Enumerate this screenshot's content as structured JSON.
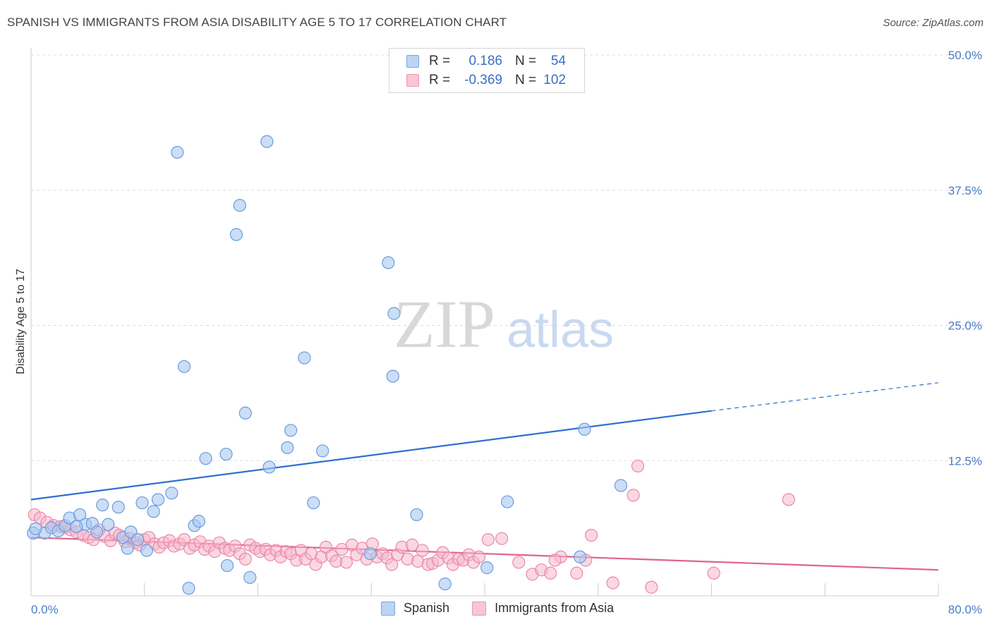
{
  "title": "SPANISH VS IMMIGRANTS FROM ASIA DISABILITY AGE 5 TO 17 CORRELATION CHART",
  "source": "Source: ZipAtlas.com",
  "watermark": {
    "zip": "ZIP",
    "atlas": "atlas"
  },
  "legend": [
    {
      "name": "Spanish",
      "r_label": "R =",
      "r_value": "0.186",
      "n_label": "N =",
      "n_value": "54"
    },
    {
      "name": "Immigrants from Asia",
      "r_label": "R =",
      "r_value": "-0.369",
      "n_label": "N =",
      "n_value": "102"
    }
  ],
  "colors": {
    "spanish_fill": "#a9c8ef",
    "spanish_stroke": "#6a9be0",
    "spanish_line": "#2f6fd0",
    "asia_fill": "#f6b8cb",
    "asia_stroke": "#ea88a8",
    "asia_line": "#e0628f",
    "grid": "#dddddd",
    "axis_text": "#4a7cc9"
  },
  "chart_data": {
    "type": "scatter",
    "title": "SPANISH VS IMMIGRANTS FROM ASIA DISABILITY AGE 5 TO 17 CORRELATION CHART",
    "xlabel": "",
    "ylabel": "Disability Age 5 to 17",
    "xlim": [
      0,
      80
    ],
    "ylim": [
      0,
      50
    ],
    "x_tick_labels": [
      "0.0%",
      "80.0%"
    ],
    "y_tick_labels": [
      "12.5%",
      "25.0%",
      "37.5%",
      "50.0%"
    ],
    "y_ticks": [
      12.5,
      25.0,
      37.5,
      50.0
    ],
    "series": [
      {
        "name": "Spanish",
        "r": 0.186,
        "n": 54,
        "trend": {
          "x0": 0,
          "y0": 8.9,
          "x1": 60,
          "y1": 17.1,
          "dashed_to_x": 80,
          "dashed_to_y": 19.7
        },
        "points": [
          [
            0.2,
            5.8
          ],
          [
            1.2,
            5.8
          ],
          [
            1.8,
            6.3
          ],
          [
            2.4,
            6.0
          ],
          [
            3.0,
            6.5
          ],
          [
            3.4,
            7.2
          ],
          [
            4.3,
            7.5
          ],
          [
            4.8,
            6.6
          ],
          [
            5.4,
            6.7
          ],
          [
            5.8,
            5.9
          ],
          [
            6.3,
            8.4
          ],
          [
            6.8,
            6.6
          ],
          [
            7.7,
            8.2
          ],
          [
            8.1,
            5.4
          ],
          [
            8.5,
            4.4
          ],
          [
            8.8,
            5.9
          ],
          [
            9.4,
            5.2
          ],
          [
            9.8,
            8.6
          ],
          [
            10.2,
            4.2
          ],
          [
            10.8,
            7.8
          ],
          [
            11.2,
            8.9
          ],
          [
            12.4,
            9.5
          ],
          [
            12.9,
            41.0
          ],
          [
            13.5,
            21.2
          ],
          [
            13.9,
            0.7
          ],
          [
            14.4,
            6.5
          ],
          [
            14.8,
            6.9
          ],
          [
            15.4,
            12.7
          ],
          [
            17.2,
            13.1
          ],
          [
            17.3,
            2.8
          ],
          [
            18.4,
            36.1
          ],
          [
            18.1,
            33.4
          ],
          [
            18.9,
            16.9
          ],
          [
            19.3,
            1.7
          ],
          [
            21.0,
            11.9
          ],
          [
            20.8,
            42.0
          ],
          [
            22.6,
            13.7
          ],
          [
            22.9,
            15.3
          ],
          [
            24.1,
            22.0
          ],
          [
            24.9,
            8.6
          ],
          [
            25.7,
            13.4
          ],
          [
            29.9,
            3.9
          ],
          [
            31.5,
            30.8
          ],
          [
            32.0,
            26.1
          ],
          [
            31.9,
            20.3
          ],
          [
            34.0,
            7.5
          ],
          [
            36.5,
            1.1
          ],
          [
            40.2,
            2.6
          ],
          [
            42.0,
            8.7
          ],
          [
            48.4,
            3.6
          ],
          [
            48.8,
            15.4
          ],
          [
            52.0,
            10.2
          ],
          [
            0.4,
            6.2
          ],
          [
            4.0,
            6.4
          ]
        ]
      },
      {
        "name": "Immigrants from Asia",
        "r": -0.369,
        "n": 102,
        "trend": {
          "x0": 0,
          "y0": 5.4,
          "x1": 80,
          "y1": 2.4
        },
        "points": [
          [
            0.3,
            7.5
          ],
          [
            0.8,
            7.2
          ],
          [
            1.4,
            6.8
          ],
          [
            2.0,
            6.5
          ],
          [
            2.6,
            6.4
          ],
          [
            3.0,
            6.3
          ],
          [
            3.5,
            6.1
          ],
          [
            4.0,
            5.9
          ],
          [
            4.6,
            5.6
          ],
          [
            5.1,
            5.4
          ],
          [
            5.5,
            5.2
          ],
          [
            6.0,
            6.1
          ],
          [
            6.5,
            5.5
          ],
          [
            7.0,
            5.1
          ],
          [
            7.4,
            5.8
          ],
          [
            7.8,
            5.6
          ],
          [
            8.3,
            5.0
          ],
          [
            8.7,
            5.3
          ],
          [
            9.2,
            4.9
          ],
          [
            9.6,
            4.7
          ],
          [
            10.0,
            5.2
          ],
          [
            10.4,
            5.4
          ],
          [
            10.9,
            4.8
          ],
          [
            11.3,
            4.5
          ],
          [
            11.7,
            4.9
          ],
          [
            12.2,
            5.1
          ],
          [
            12.6,
            4.6
          ],
          [
            13.1,
            4.8
          ],
          [
            13.5,
            5.2
          ],
          [
            14.0,
            4.4
          ],
          [
            14.4,
            4.7
          ],
          [
            14.9,
            5.0
          ],
          [
            15.3,
            4.3
          ],
          [
            15.7,
            4.6
          ],
          [
            16.2,
            4.1
          ],
          [
            16.6,
            4.9
          ],
          [
            17.1,
            4.4
          ],
          [
            17.5,
            4.2
          ],
          [
            18.0,
            4.6
          ],
          [
            18.4,
            3.9
          ],
          [
            18.9,
            3.4
          ],
          [
            19.3,
            4.7
          ],
          [
            19.8,
            4.4
          ],
          [
            20.2,
            4.1
          ],
          [
            20.7,
            4.3
          ],
          [
            21.1,
            3.8
          ],
          [
            21.6,
            4.2
          ],
          [
            22.0,
            3.6
          ],
          [
            22.5,
            4.1
          ],
          [
            22.9,
            3.9
          ],
          [
            23.4,
            3.3
          ],
          [
            23.8,
            4.2
          ],
          [
            24.2,
            3.4
          ],
          [
            24.7,
            3.9
          ],
          [
            25.1,
            2.9
          ],
          [
            25.6,
            3.6
          ],
          [
            26.0,
            4.5
          ],
          [
            26.5,
            3.7
          ],
          [
            26.9,
            3.2
          ],
          [
            27.4,
            4.3
          ],
          [
            27.8,
            3.1
          ],
          [
            28.3,
            4.7
          ],
          [
            28.7,
            3.8
          ],
          [
            29.2,
            4.4
          ],
          [
            29.6,
            3.4
          ],
          [
            30.1,
            4.8
          ],
          [
            30.5,
            3.6
          ],
          [
            31.0,
            3.9
          ],
          [
            31.4,
            3.5
          ],
          [
            31.8,
            2.9
          ],
          [
            32.3,
            3.8
          ],
          [
            32.7,
            4.5
          ],
          [
            33.2,
            3.4
          ],
          [
            33.6,
            4.7
          ],
          [
            34.1,
            3.2
          ],
          [
            34.5,
            4.2
          ],
          [
            35.0,
            2.9
          ],
          [
            35.4,
            3.0
          ],
          [
            35.9,
            3.3
          ],
          [
            36.3,
            4.0
          ],
          [
            36.8,
            3.5
          ],
          [
            37.2,
            2.9
          ],
          [
            37.7,
            3.4
          ],
          [
            38.1,
            3.3
          ],
          [
            38.6,
            3.8
          ],
          [
            39.0,
            3.1
          ],
          [
            39.5,
            3.6
          ],
          [
            40.3,
            5.2
          ],
          [
            41.5,
            5.3
          ],
          [
            43.0,
            3.1
          ],
          [
            44.2,
            2.0
          ],
          [
            45.0,
            2.4
          ],
          [
            45.8,
            2.1
          ],
          [
            46.7,
            3.6
          ],
          [
            48.1,
            2.1
          ],
          [
            48.9,
            3.3
          ],
          [
            49.4,
            5.6
          ],
          [
            51.3,
            1.2
          ],
          [
            53.1,
            9.3
          ],
          [
            53.5,
            12.0
          ],
          [
            54.7,
            0.8
          ],
          [
            60.2,
            2.1
          ],
          [
            66.8,
            8.9
          ],
          [
            46.2,
            3.3
          ]
        ]
      }
    ]
  }
}
